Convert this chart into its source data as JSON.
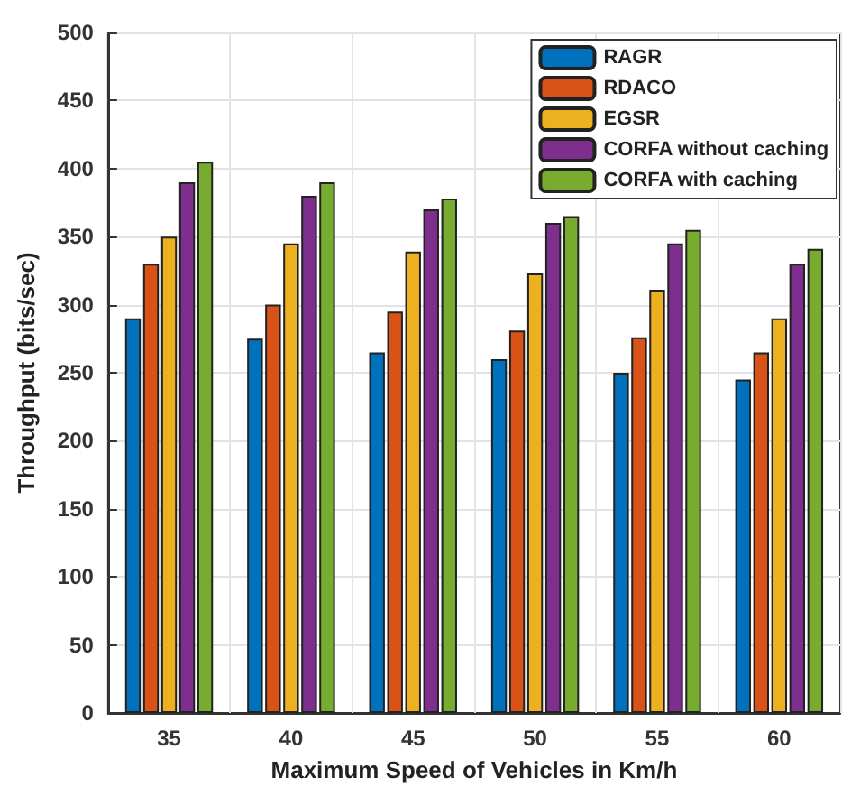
{
  "chart_data": {
    "type": "bar",
    "xlabel": "Maximum Speed of Vehicles in Km/h",
    "ylabel": "Throughput (bits/sec)",
    "categories": [
      "35",
      "40",
      "45",
      "50",
      "55",
      "60"
    ],
    "series": [
      {
        "name": "RAGR",
        "color": "#0072bd",
        "values": [
          290,
          275,
          265,
          260,
          250,
          245
        ]
      },
      {
        "name": "RDACO",
        "color": "#d95319",
        "values": [
          330,
          300,
          295,
          281,
          276,
          265
        ]
      },
      {
        "name": "EGSR",
        "color": "#edb120",
        "values": [
          350,
          345,
          339,
          323,
          311,
          290
        ]
      },
      {
        "name": "CORFA without caching",
        "color": "#7e2f8e",
        "values": [
          390,
          380,
          370,
          360,
          345,
          330
        ]
      },
      {
        "name": "CORFA with caching",
        "color": "#77ac30",
        "values": [
          405,
          390,
          378,
          365,
          355,
          341
        ]
      }
    ],
    "ylim": [
      0,
      500
    ],
    "yticks": [
      0,
      50,
      100,
      150,
      200,
      250,
      300,
      350,
      400,
      450,
      500
    ],
    "grid": true,
    "legend": "top right"
  }
}
